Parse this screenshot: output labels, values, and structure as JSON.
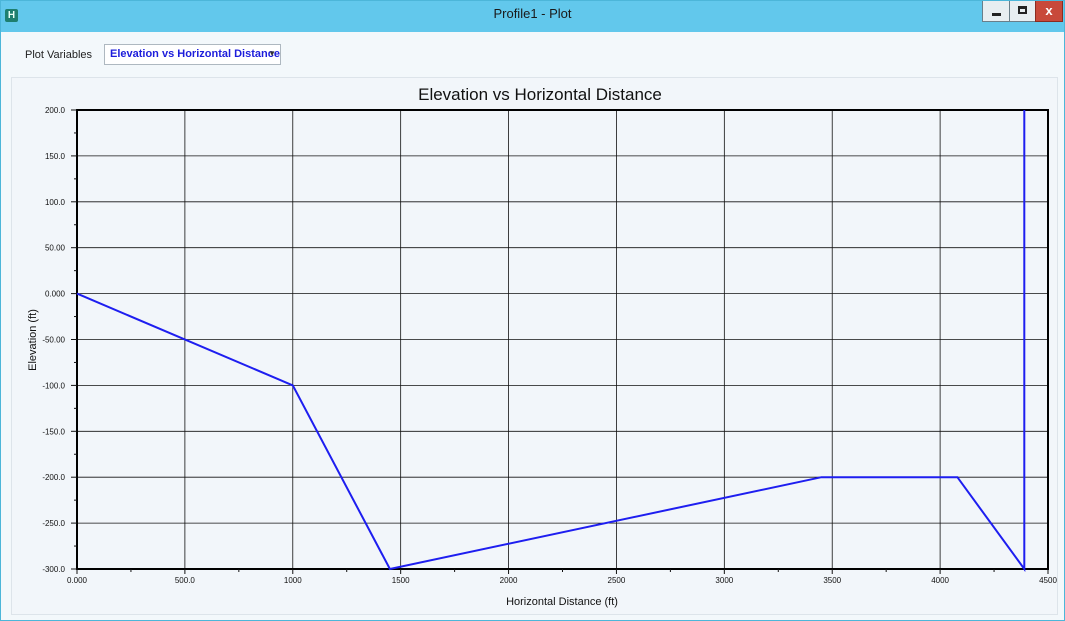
{
  "window": {
    "title": "Profile1 - Plot",
    "app_icon_letter": "H",
    "close_label": "x"
  },
  "toolbar": {
    "plot_variables_label": "Plot Variables",
    "selected_plot": "Elevation vs Horizontal Distance"
  },
  "colors": {
    "series": "#1e1ef0",
    "titlebar": "#62c8ec"
  },
  "chart_data": {
    "type": "line",
    "title": "Elevation vs Horizontal Distance",
    "xlabel": "Horizontal Distance (ft)",
    "ylabel": "Elevation (ft)",
    "xlim": [
      0,
      4500
    ],
    "ylim": [
      -300,
      200
    ],
    "x_ticks": [
      0,
      500,
      1000,
      1500,
      2000,
      2500,
      3000,
      3500,
      4000,
      4500
    ],
    "x_tick_labels": [
      "0.000",
      "500.0",
      "1000",
      "1500",
      "2000",
      "2500",
      "3000",
      "3500",
      "4000",
      "4500"
    ],
    "y_ticks": [
      200,
      150,
      100,
      50,
      0,
      -50,
      -100,
      -150,
      -200,
      -250,
      -300
    ],
    "y_tick_labels": [
      "200.0",
      "150.0",
      "100.0",
      "50.00",
      "0.000",
      "-50.00",
      "-100.0",
      "-150.0",
      "-200.0",
      "-250.0",
      "-300.0"
    ],
    "grid": true,
    "series": [
      {
        "x": [
          0,
          1000,
          1450,
          3450,
          4080,
          4390,
          4390
        ],
        "y": [
          0,
          -100,
          -300,
          -200,
          -200,
          -300,
          200
        ]
      }
    ]
  }
}
